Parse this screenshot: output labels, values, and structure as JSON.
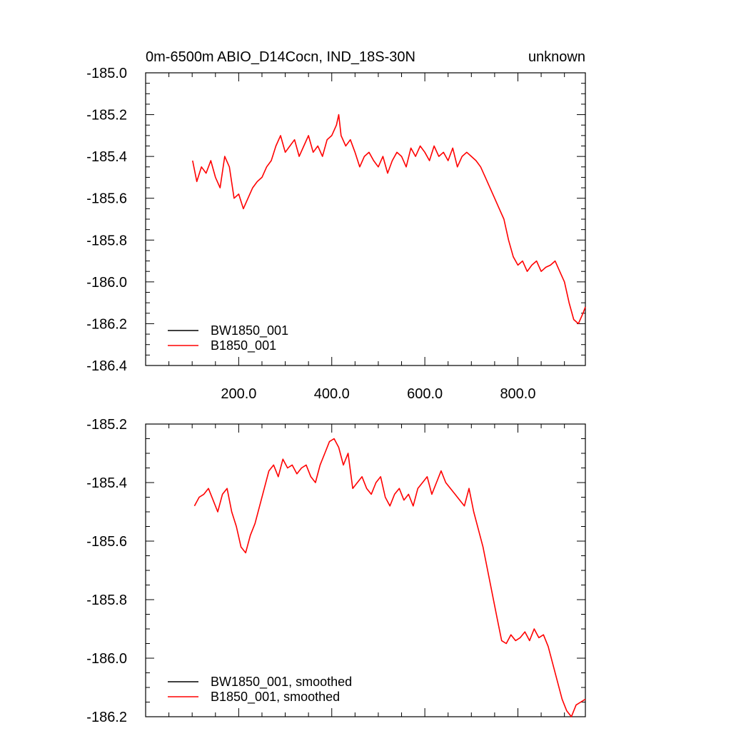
{
  "figure": {
    "title_left": "0m-6500m ABIO_D14Cocn, IND_18S-30N",
    "title_right": "unknown"
  },
  "chart_data": [
    {
      "type": "line",
      "title": "0m-6500m ABIO_D14Cocn, IND_18S-30N",
      "xlim": [
        0,
        945
      ],
      "ylim": [
        -186.4,
        -185.0
      ],
      "x_ticks": [
        200,
        400,
        600,
        800
      ],
      "x_tick_labels": [
        "200.0",
        "400.0",
        "600.0",
        "800.0"
      ],
      "y_ticks": [
        -185.0,
        -185.2,
        -185.4,
        -185.6,
        -185.8,
        -186.0,
        -186.2,
        -186.4
      ],
      "y_tick_labels": [
        "-185.0",
        "-185.2",
        "-185.4",
        "-185.6",
        "-185.8",
        "-186.0",
        "-186.2",
        "-186.4"
      ],
      "legend_position": "bottom-left",
      "series": [
        {
          "name": "BW1850_001",
          "color": "#000000",
          "x": [],
          "y": []
        },
        {
          "name": "B1850_001",
          "color": "#ff0000",
          "x": [
            101,
            110,
            120,
            130,
            140,
            150,
            160,
            170,
            180,
            190,
            200,
            210,
            220,
            230,
            240,
            250,
            260,
            270,
            280,
            290,
            300,
            310,
            320,
            330,
            340,
            350,
            360,
            370,
            380,
            390,
            400,
            410,
            415,
            420,
            430,
            440,
            450,
            460,
            470,
            480,
            490,
            500,
            510,
            520,
            530,
            540,
            550,
            560,
            570,
            580,
            590,
            600,
            610,
            620,
            630,
            640,
            650,
            660,
            670,
            680,
            690,
            700,
            710,
            720,
            730,
            740,
            750,
            760,
            770,
            780,
            790,
            800,
            810,
            820,
            830,
            840,
            850,
            860,
            870,
            880,
            890,
            900,
            910,
            920,
            930,
            940,
            945
          ],
          "y": [
            -185.42,
            -185.52,
            -185.45,
            -185.48,
            -185.42,
            -185.5,
            -185.55,
            -185.4,
            -185.45,
            -185.6,
            -185.58,
            -185.65,
            -185.6,
            -185.55,
            -185.52,
            -185.5,
            -185.45,
            -185.42,
            -185.35,
            -185.3,
            -185.38,
            -185.35,
            -185.32,
            -185.4,
            -185.35,
            -185.3,
            -185.38,
            -185.35,
            -185.4,
            -185.32,
            -185.3,
            -185.25,
            -185.2,
            -185.3,
            -185.35,
            -185.32,
            -185.38,
            -185.45,
            -185.4,
            -185.38,
            -185.42,
            -185.45,
            -185.4,
            -185.48,
            -185.42,
            -185.38,
            -185.4,
            -185.45,
            -185.36,
            -185.4,
            -185.35,
            -185.38,
            -185.42,
            -185.35,
            -185.4,
            -185.38,
            -185.42,
            -185.36,
            -185.45,
            -185.4,
            -185.38,
            -185.4,
            -185.42,
            -185.45,
            -185.5,
            -185.55,
            -185.6,
            -185.65,
            -185.7,
            -185.8,
            -185.88,
            -185.92,
            -185.9,
            -185.95,
            -185.92,
            -185.9,
            -185.95,
            -185.93,
            -185.92,
            -185.9,
            -185.95,
            -186.0,
            -186.1,
            -186.18,
            -186.2,
            -186.15,
            -186.12
          ]
        }
      ]
    },
    {
      "type": "line",
      "xlim": [
        0,
        945
      ],
      "ylim": [
        -186.2,
        -185.2
      ],
      "x_ticks": [
        200,
        400,
        600,
        800
      ],
      "x_tick_labels": [],
      "y_ticks": [
        -185.2,
        -185.4,
        -185.6,
        -185.8,
        -186.0,
        -186.2
      ],
      "y_tick_labels": [
        "-185.2",
        "-185.4",
        "-185.6",
        "-185.8",
        "-186.0",
        "-186.2"
      ],
      "legend_position": "bottom-left",
      "series": [
        {
          "name": "BW1850_001, smoothed",
          "color": "#000000",
          "x": [],
          "y": []
        },
        {
          "name": "B1850_001, smoothed",
          "color": "#ff0000",
          "x": [
            105,
            115,
            125,
            135,
            145,
            155,
            165,
            175,
            185,
            195,
            205,
            215,
            225,
            235,
            245,
            255,
            265,
            275,
            285,
            295,
            305,
            315,
            325,
            335,
            345,
            355,
            365,
            375,
            385,
            395,
            405,
            415,
            425,
            435,
            445,
            455,
            465,
            475,
            485,
            495,
            505,
            515,
            525,
            535,
            545,
            555,
            565,
            575,
            585,
            595,
            605,
            615,
            625,
            635,
            645,
            655,
            665,
            675,
            685,
            695,
            705,
            715,
            725,
            735,
            745,
            755,
            765,
            775,
            785,
            795,
            805,
            815,
            825,
            835,
            845,
            855,
            865,
            875,
            885,
            895,
            905,
            915,
            925,
            935,
            945
          ],
          "y": [
            -185.48,
            -185.45,
            -185.44,
            -185.42,
            -185.46,
            -185.5,
            -185.44,
            -185.42,
            -185.5,
            -185.55,
            -185.62,
            -185.64,
            -185.58,
            -185.54,
            -185.48,
            -185.42,
            -185.36,
            -185.34,
            -185.38,
            -185.32,
            -185.35,
            -185.34,
            -185.37,
            -185.35,
            -185.34,
            -185.38,
            -185.4,
            -185.34,
            -185.3,
            -185.26,
            -185.25,
            -185.28,
            -185.34,
            -185.3,
            -185.42,
            -185.4,
            -185.38,
            -185.42,
            -185.44,
            -185.4,
            -185.38,
            -185.45,
            -185.48,
            -185.44,
            -185.42,
            -185.46,
            -185.44,
            -185.48,
            -185.42,
            -185.4,
            -185.38,
            -185.44,
            -185.4,
            -185.36,
            -185.4,
            -185.42,
            -185.44,
            -185.46,
            -185.48,
            -185.42,
            -185.5,
            -185.56,
            -185.62,
            -185.7,
            -185.78,
            -185.86,
            -185.94,
            -185.95,
            -185.92,
            -185.94,
            -185.93,
            -185.91,
            -185.94,
            -185.9,
            -185.93,
            -185.92,
            -185.96,
            -186.02,
            -186.08,
            -186.14,
            -186.18,
            -186.2,
            -186.16,
            -186.15,
            -186.14
          ]
        }
      ]
    }
  ]
}
